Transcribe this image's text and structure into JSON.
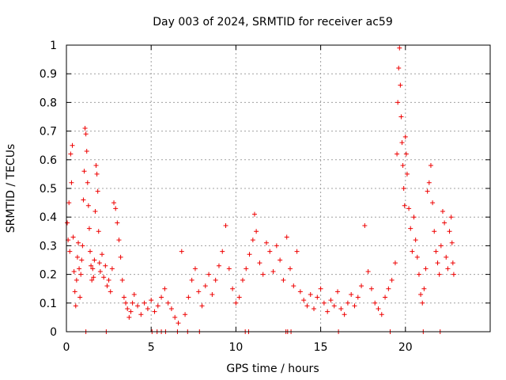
{
  "chart_data": {
    "type": "scatter",
    "title": "Day 003 of 2024, SRMTID for receiver ac59",
    "xlabel": "GPS time / hours",
    "ylabel": "SRMTID / TECUs",
    "xlim": [
      0,
      25
    ],
    "ylim": [
      0,
      1
    ],
    "xticks": [
      0,
      5,
      10,
      15,
      20
    ],
    "xtick_labels": [
      "0",
      "5",
      "10",
      "15",
      "20"
    ],
    "yticks": [
      0,
      0.1,
      0.2,
      0.3,
      0.4,
      0.5,
      0.6,
      0.7,
      0.8,
      0.9,
      1
    ],
    "ytick_labels": [
      "0",
      "0.1",
      "0.2",
      "0.3",
      "0.4",
      "0.5",
      "0.6",
      "0.7",
      "0.8",
      "0.9",
      "1"
    ],
    "grid": true,
    "marker": "+",
    "color": "#ee0000",
    "series": [
      {
        "name": "SRMTID",
        "points": [
          [
            0.05,
            0.38
          ],
          [
            0.1,
            0.32
          ],
          [
            0.15,
            0.45
          ],
          [
            0.2,
            0.28
          ],
          [
            0.25,
            0.62
          ],
          [
            0.3,
            0.52
          ],
          [
            0.35,
            0.65
          ],
          [
            0.4,
            0.33
          ],
          [
            0.45,
            0.21
          ],
          [
            0.5,
            0.14
          ],
          [
            0.55,
            0.09
          ],
          [
            0.6,
            0.18
          ],
          [
            0.65,
            0.26
          ],
          [
            0.7,
            0.31
          ],
          [
            0.75,
            0.22
          ],
          [
            0.8,
            0.12
          ],
          [
            0.85,
            0.2
          ],
          [
            0.9,
            0.25
          ],
          [
            0.95,
            0.3
          ],
          [
            1.0,
            0.46
          ],
          [
            1.05,
            0.56
          ],
          [
            1.1,
            0.71
          ],
          [
            1.15,
            0.69
          ],
          [
            1.2,
            0.63
          ],
          [
            1.25,
            0.52
          ],
          [
            1.3,
            0.44
          ],
          [
            1.35,
            0.36
          ],
          [
            1.4,
            0.28
          ],
          [
            1.45,
            0.23
          ],
          [
            1.5,
            0.18
          ],
          [
            1.55,
            0.22
          ],
          [
            1.6,
            0.19
          ],
          [
            1.65,
            0.25
          ],
          [
            1.7,
            0.42
          ],
          [
            1.75,
            0.58
          ],
          [
            1.8,
            0.55
          ],
          [
            1.85,
            0.49
          ],
          [
            1.9,
            0.35
          ],
          [
            1.95,
            0.24
          ],
          [
            2.0,
            0.21
          ],
          [
            2.1,
            0.27
          ],
          [
            2.2,
            0.19
          ],
          [
            2.3,
            0.23
          ],
          [
            2.4,
            0.16
          ],
          [
            2.5,
            0.18
          ],
          [
            2.6,
            0.14
          ],
          [
            2.7,
            0.22
          ],
          [
            2.8,
            0.45
          ],
          [
            2.9,
            0.43
          ],
          [
            3.0,
            0.38
          ],
          [
            3.1,
            0.32
          ],
          [
            3.2,
            0.26
          ],
          [
            3.3,
            0.18
          ],
          [
            3.4,
            0.12
          ],
          [
            3.5,
            0.1
          ],
          [
            3.6,
            0.08
          ],
          [
            3.7,
            0.05
          ],
          [
            3.8,
            0.07
          ],
          [
            3.9,
            0.1
          ],
          [
            4.0,
            0.13
          ],
          [
            4.2,
            0.09
          ],
          [
            4.4,
            0.06
          ],
          [
            4.6,
            0.1
          ],
          [
            4.8,
            0.08
          ],
          [
            5.0,
            0.11
          ],
          [
            5.2,
            0.07
          ],
          [
            5.4,
            0.09
          ],
          [
            5.6,
            0.12
          ],
          [
            5.8,
            0.15
          ],
          [
            6.0,
            0.1
          ],
          [
            6.2,
            0.08
          ],
          [
            6.4,
            0.05
          ],
          [
            6.6,
            0.03
          ],
          [
            6.8,
            0.28
          ],
          [
            7.0,
            0.06
          ],
          [
            7.2,
            0.12
          ],
          [
            7.4,
            0.18
          ],
          [
            7.6,
            0.22
          ],
          [
            7.8,
            0.14
          ],
          [
            8.0,
            0.09
          ],
          [
            8.2,
            0.16
          ],
          [
            8.4,
            0.2
          ],
          [
            8.6,
            0.13
          ],
          [
            8.8,
            0.18
          ],
          [
            9.0,
            0.23
          ],
          [
            9.2,
            0.28
          ],
          [
            9.4,
            0.37
          ],
          [
            9.6,
            0.22
          ],
          [
            9.8,
            0.15
          ],
          [
            10.0,
            0.1
          ],
          [
            10.2,
            0.12
          ],
          [
            10.4,
            0.18
          ],
          [
            10.6,
            0.22
          ],
          [
            10.8,
            0.27
          ],
          [
            11.0,
            0.32
          ],
          [
            11.1,
            0.41
          ],
          [
            11.2,
            0.35
          ],
          [
            11.4,
            0.24
          ],
          [
            11.6,
            0.2
          ],
          [
            11.8,
            0.31
          ],
          [
            12.0,
            0.28
          ],
          [
            12.2,
            0.21
          ],
          [
            12.4,
            0.3
          ],
          [
            12.6,
            0.25
          ],
          [
            12.8,
            0.18
          ],
          [
            13.0,
            0.33
          ],
          [
            13.2,
            0.22
          ],
          [
            13.4,
            0.16
          ],
          [
            13.6,
            0.28
          ],
          [
            13.8,
            0.14
          ],
          [
            14.0,
            0.11
          ],
          [
            14.2,
            0.09
          ],
          [
            14.4,
            0.13
          ],
          [
            14.6,
            0.08
          ],
          [
            14.8,
            0.12
          ],
          [
            15.0,
            0.15
          ],
          [
            15.2,
            0.1
          ],
          [
            15.4,
            0.07
          ],
          [
            15.6,
            0.11
          ],
          [
            15.8,
            0.09
          ],
          [
            16.0,
            0.14
          ],
          [
            16.2,
            0.08
          ],
          [
            16.4,
            0.06
          ],
          [
            16.6,
            0.1
          ],
          [
            16.8,
            0.13
          ],
          [
            17.0,
            0.09
          ],
          [
            17.2,
            0.12
          ],
          [
            17.4,
            0.16
          ],
          [
            17.6,
            0.37
          ],
          [
            17.8,
            0.21
          ],
          [
            18.0,
            0.15
          ],
          [
            18.2,
            0.1
          ],
          [
            18.4,
            0.08
          ],
          [
            18.6,
            0.06
          ],
          [
            18.8,
            0.12
          ],
          [
            19.0,
            0.15
          ],
          [
            19.2,
            0.18
          ],
          [
            19.4,
            0.24
          ],
          [
            19.5,
            0.62
          ],
          [
            19.55,
            0.8
          ],
          [
            19.6,
            0.92
          ],
          [
            19.65,
            0.99
          ],
          [
            19.7,
            0.86
          ],
          [
            19.75,
            0.75
          ],
          [
            19.8,
            0.66
          ],
          [
            19.85,
            0.58
          ],
          [
            19.9,
            0.5
          ],
          [
            19.95,
            0.44
          ],
          [
            20.0,
            0.68
          ],
          [
            20.05,
            0.62
          ],
          [
            20.1,
            0.55
          ],
          [
            20.2,
            0.43
          ],
          [
            20.3,
            0.36
          ],
          [
            20.4,
            0.28
          ],
          [
            20.5,
            0.4
          ],
          [
            20.6,
            0.32
          ],
          [
            20.7,
            0.26
          ],
          [
            20.8,
            0.2
          ],
          [
            20.9,
            0.13
          ],
          [
            21.0,
            0.1
          ],
          [
            21.1,
            0.15
          ],
          [
            21.2,
            0.22
          ],
          [
            21.3,
            0.49
          ],
          [
            21.4,
            0.52
          ],
          [
            21.5,
            0.58
          ],
          [
            21.6,
            0.45
          ],
          [
            21.7,
            0.35
          ],
          [
            21.8,
            0.28
          ],
          [
            21.9,
            0.24
          ],
          [
            22.0,
            0.2
          ],
          [
            22.1,
            0.3
          ],
          [
            22.2,
            0.42
          ],
          [
            22.3,
            0.38
          ],
          [
            22.4,
            0.26
          ],
          [
            22.5,
            0.22
          ],
          [
            22.6,
            0.35
          ],
          [
            22.7,
            0.4
          ],
          [
            22.75,
            0.31
          ],
          [
            22.8,
            0.24
          ],
          [
            22.85,
            0.2
          ]
        ],
        "zero_points": [
          1.15,
          2.35,
          5.05,
          5.35,
          5.6,
          5.85,
          6.55,
          7.15,
          7.85,
          10.55,
          10.75,
          12.95,
          13.05,
          13.25,
          16.05,
          19.1,
          21.05,
          22.05
        ]
      }
    ]
  }
}
